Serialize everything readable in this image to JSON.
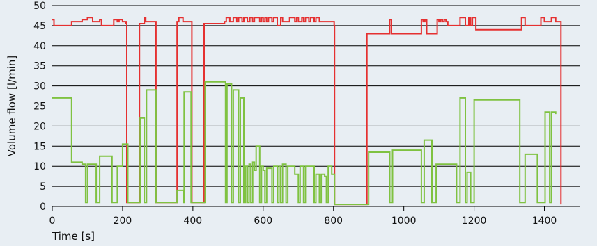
{
  "chart_data": {
    "type": "line",
    "title": "",
    "xlabel": "Time [s]",
    "ylabel": "Volume flow [l/min]",
    "xlim": [
      0,
      1500
    ],
    "ylim": [
      0,
      50
    ],
    "grid": true,
    "x_ticks": [
      0,
      200,
      400,
      600,
      800,
      1000,
      1200,
      1400
    ],
    "y_ticks": [
      0,
      5,
      10,
      15,
      20,
      25,
      30,
      35,
      40,
      45,
      50
    ],
    "colors": {
      "background": "#e8eef3",
      "grid": "#000000",
      "red_series": "#e53030",
      "green_series": "#7fc241"
    },
    "series": [
      {
        "color": "red",
        "step": true,
        "points": [
          [
            0,
            46.5
          ],
          [
            5,
            45
          ],
          [
            55,
            46
          ],
          [
            85,
            46.5
          ],
          [
            100,
            47
          ],
          [
            115,
            46
          ],
          [
            135,
            46.5
          ],
          [
            140,
            45
          ],
          [
            175,
            46.5
          ],
          [
            185,
            46
          ],
          [
            190,
            46.5
          ],
          [
            200,
            46
          ],
          [
            210,
            45.5
          ],
          [
            212,
            1
          ],
          [
            248,
            45.5
          ],
          [
            262,
            47
          ],
          [
            266,
            46
          ],
          [
            292,
            46
          ],
          [
            295,
            1
          ],
          [
            355,
            46
          ],
          [
            360,
            47
          ],
          [
            372,
            46
          ],
          [
            395,
            46
          ],
          [
            397,
            1
          ],
          [
            432,
            45.5
          ],
          [
            490,
            46
          ],
          [
            495,
            47
          ],
          [
            505,
            46
          ],
          [
            515,
            47
          ],
          [
            525,
            46
          ],
          [
            530,
            47
          ],
          [
            540,
            46
          ],
          [
            545,
            47
          ],
          [
            555,
            46
          ],
          [
            562,
            47
          ],
          [
            570,
            46
          ],
          [
            575,
            47
          ],
          [
            590,
            46
          ],
          [
            595,
            47
          ],
          [
            600,
            46
          ],
          [
            605,
            47
          ],
          [
            610,
            46
          ],
          [
            615,
            47
          ],
          [
            625,
            46
          ],
          [
            630,
            47
          ],
          [
            640,
            45
          ],
          [
            650,
            47
          ],
          [
            655,
            46
          ],
          [
            670,
            46
          ],
          [
            675,
            47
          ],
          [
            690,
            46
          ],
          [
            695,
            47
          ],
          [
            700,
            46
          ],
          [
            710,
            47
          ],
          [
            715,
            46
          ],
          [
            720,
            47
          ],
          [
            730,
            46
          ],
          [
            735,
            47
          ],
          [
            745,
            46
          ],
          [
            750,
            47
          ],
          [
            760,
            46
          ],
          [
            770,
            46
          ],
          [
            802,
            45
          ],
          [
            803,
            0.5
          ],
          [
            895,
            43
          ],
          [
            955,
            43
          ],
          [
            960,
            46.5
          ],
          [
            965,
            43
          ],
          [
            1050,
            46.5
          ],
          [
            1055,
            46
          ],
          [
            1060,
            46.5
          ],
          [
            1065,
            43
          ],
          [
            1090,
            43
          ],
          [
            1095,
            46.5
          ],
          [
            1100,
            46
          ],
          [
            1105,
            46.5
          ],
          [
            1110,
            46
          ],
          [
            1115,
            46.5
          ],
          [
            1120,
            46
          ],
          [
            1125,
            45
          ],
          [
            1160,
            47
          ],
          [
            1175,
            45
          ],
          [
            1185,
            47
          ],
          [
            1190,
            45
          ],
          [
            1195,
            47
          ],
          [
            1205,
            44
          ],
          [
            1330,
            44
          ],
          [
            1335,
            47
          ],
          [
            1345,
            45
          ],
          [
            1385,
            45
          ],
          [
            1390,
            47
          ],
          [
            1400,
            46
          ],
          [
            1420,
            47
          ],
          [
            1432,
            46
          ],
          [
            1445,
            46
          ],
          [
            1447,
            0.5
          ]
        ]
      },
      {
        "color": "green",
        "step": true,
        "points": [
          [
            0,
            27
          ],
          [
            55,
            11
          ],
          [
            85,
            10.5
          ],
          [
            95,
            1
          ],
          [
            100,
            10.5
          ],
          [
            125,
            1
          ],
          [
            135,
            12.5
          ],
          [
            170,
            1
          ],
          [
            185,
            10
          ],
          [
            200,
            15.5
          ],
          [
            215,
            1
          ],
          [
            245,
            1
          ],
          [
            250,
            22
          ],
          [
            262,
            1
          ],
          [
            268,
            29
          ],
          [
            295,
            1
          ],
          [
            350,
            1
          ],
          [
            355,
            4
          ],
          [
            373,
            1
          ],
          [
            375,
            28.5
          ],
          [
            395,
            1
          ],
          [
            430,
            1
          ],
          [
            435,
            31
          ],
          [
            493,
            1
          ],
          [
            497,
            30.5
          ],
          [
            510,
            1
          ],
          [
            515,
            29
          ],
          [
            530,
            1
          ],
          [
            535,
            27
          ],
          [
            545,
            1
          ],
          [
            550,
            10
          ],
          [
            555,
            1
          ],
          [
            560,
            10.5
          ],
          [
            565,
            1
          ],
          [
            570,
            11
          ],
          [
            575,
            9
          ],
          [
            580,
            15
          ],
          [
            590,
            1
          ],
          [
            595,
            10
          ],
          [
            600,
            9
          ],
          [
            605,
            1
          ],
          [
            610,
            9.5
          ],
          [
            625,
            1
          ],
          [
            630,
            10
          ],
          [
            640,
            1
          ],
          [
            645,
            10
          ],
          [
            650,
            1
          ],
          [
            655,
            10.5
          ],
          [
            665,
            1
          ],
          [
            670,
            10
          ],
          [
            690,
            8
          ],
          [
            700,
            1
          ],
          [
            705,
            10
          ],
          [
            715,
            1
          ],
          [
            720,
            10
          ],
          [
            745,
            1
          ],
          [
            750,
            8
          ],
          [
            760,
            1
          ],
          [
            765,
            8
          ],
          [
            775,
            7.5
          ],
          [
            780,
            1
          ],
          [
            785,
            10
          ],
          [
            795,
            8
          ],
          [
            803,
            0.5
          ],
          [
            900,
            13.5
          ],
          [
            960,
            1
          ],
          [
            968,
            14
          ],
          [
            1050,
            1
          ],
          [
            1058,
            16.5
          ],
          [
            1080,
            1
          ],
          [
            1092,
            10.5
          ],
          [
            1150,
            1
          ],
          [
            1160,
            27
          ],
          [
            1175,
            1
          ],
          [
            1180,
            8.5
          ],
          [
            1190,
            1
          ],
          [
            1200,
            26.5
          ],
          [
            1330,
            1
          ],
          [
            1345,
            13
          ],
          [
            1380,
            1
          ],
          [
            1402,
            23.5
          ],
          [
            1415,
            1
          ],
          [
            1420,
            23.5
          ],
          [
            1432,
            23
          ]
        ]
      }
    ]
  }
}
